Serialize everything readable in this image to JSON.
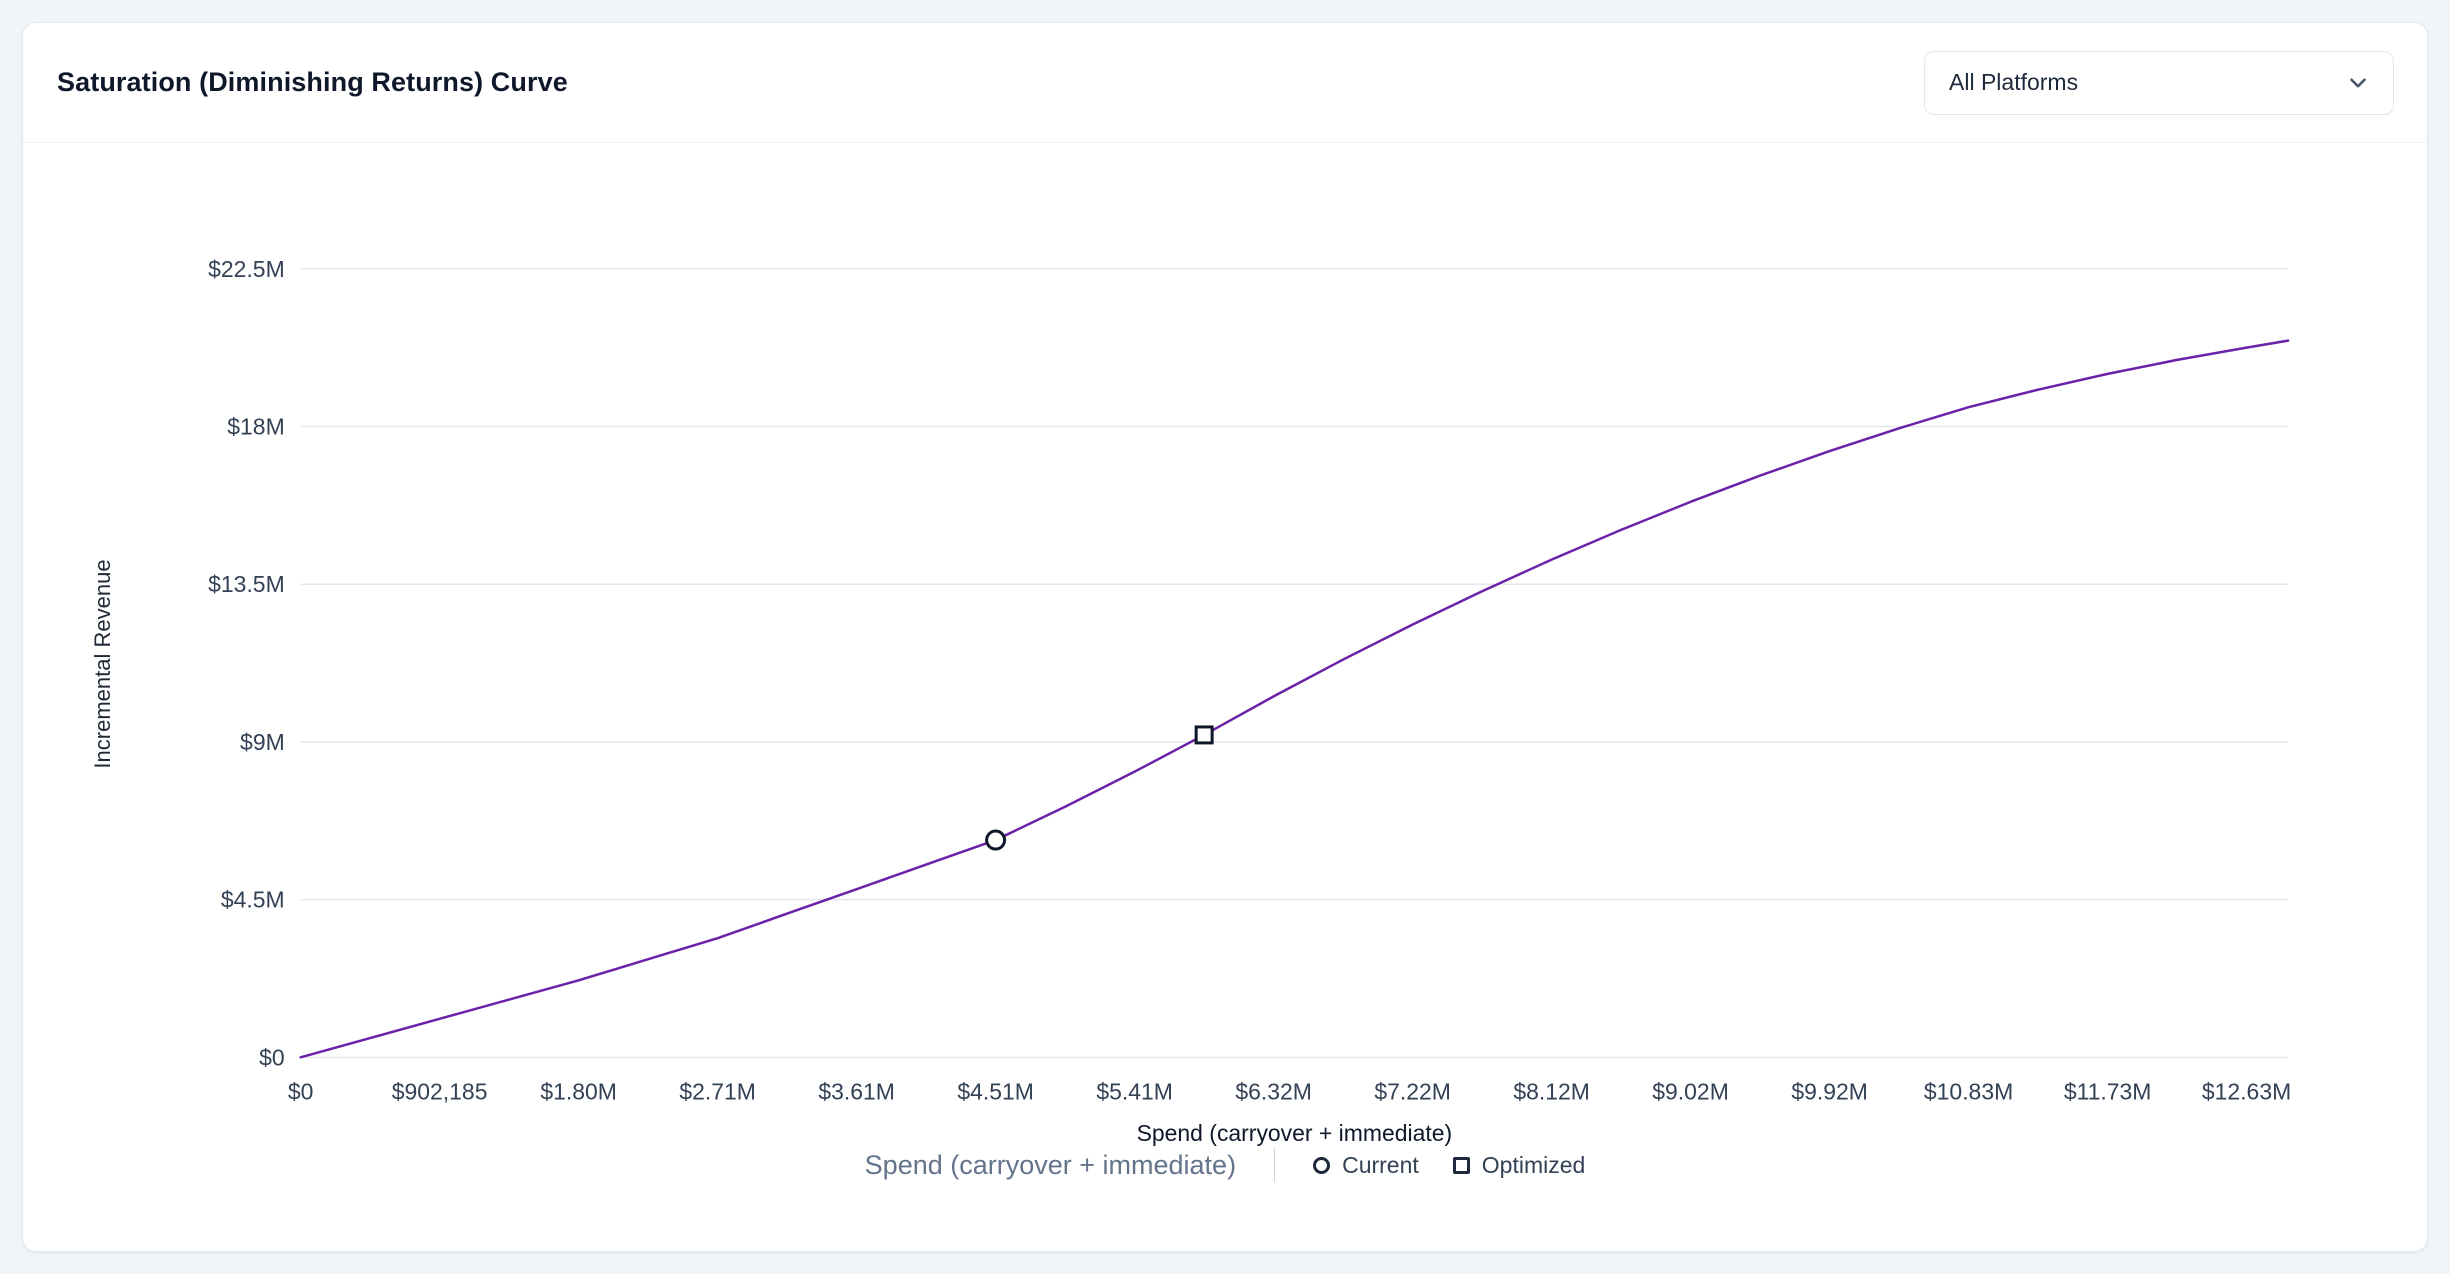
{
  "page": {
    "background": "#f1f5f9"
  },
  "card": {
    "title": "Saturation (Diminishing Returns) Curve",
    "platform_selector": {
      "value": "All Platforms",
      "icon": "chevron-down-icon"
    }
  },
  "chart_data": {
    "type": "line",
    "title": "Saturation (Diminishing Returns) Curve",
    "xlabel": "Spend (carryover + immediate)",
    "ylabel": "Incremental Revenue",
    "footer_label": "Spend (carryover + immediate)",
    "grid": "horizontal",
    "legend_position": "bottom-center",
    "xlim": [
      0,
      12900000
    ],
    "ylim": [
      0,
      22500000
    ],
    "x_tick_labels": [
      "$0",
      "$902,185",
      "$1.80M",
      "$2.71M",
      "$3.61M",
      "$4.51M",
      "$5.41M",
      "$6.32M",
      "$7.22M",
      "$8.12M",
      "$9.02M",
      "$9.92M",
      "$10.83M",
      "$11.73M",
      "$12.63M"
    ],
    "x_tick_values": [
      0,
      902185,
      1804370,
      2706555,
      3608740,
      4510925,
      5413110,
      6315295,
      7217480,
      8119665,
      9021850,
      9924035,
      10826220,
      11728405,
      12630590
    ],
    "y_tick_labels": [
      "$0",
      "$4.5M",
      "$9M",
      "$13.5M",
      "$18M",
      "$22.5M"
    ],
    "y_tick_values": [
      0,
      4500000,
      9000000,
      13500000,
      18000000,
      22500000
    ],
    "series": [
      {
        "name": "Saturation curve",
        "color": "#6b21a8",
        "x": [
          0,
          451000,
          902185,
          1353278,
          1804370,
          2255463,
          2706555,
          3157648,
          3608740,
          4059833,
          4510925,
          4962018,
          5413110,
          5864203,
          6315295,
          6766388,
          7217480,
          7668573,
          8119665,
          8570758,
          9021850,
          9472943,
          9924035,
          10375128,
          10826220,
          11277313,
          11728405,
          12179498,
          12630590,
          12900000
        ],
        "y": [
          0,
          550000,
          1100000,
          1650000,
          2200000,
          2800000,
          3400000,
          4100000,
          4800000,
          5500000,
          6200000,
          7150000,
          8150000,
          9200000,
          10300000,
          11350000,
          12350000,
          13300000,
          14200000,
          15050000,
          15850000,
          16600000,
          17300000,
          17950000,
          18550000,
          19050000,
          19500000,
          19900000,
          20250000,
          20450000
        ]
      }
    ],
    "markers": [
      {
        "name": "Current",
        "shape": "circle",
        "x": 4510925,
        "y": 6200000
      },
      {
        "name": "Optimized",
        "shape": "square",
        "x": 5864203,
        "y": 9200000
      }
    ],
    "legend": [
      {
        "label": "Current",
        "marker": "circle"
      },
      {
        "label": "Optimized",
        "marker": "square"
      }
    ]
  }
}
